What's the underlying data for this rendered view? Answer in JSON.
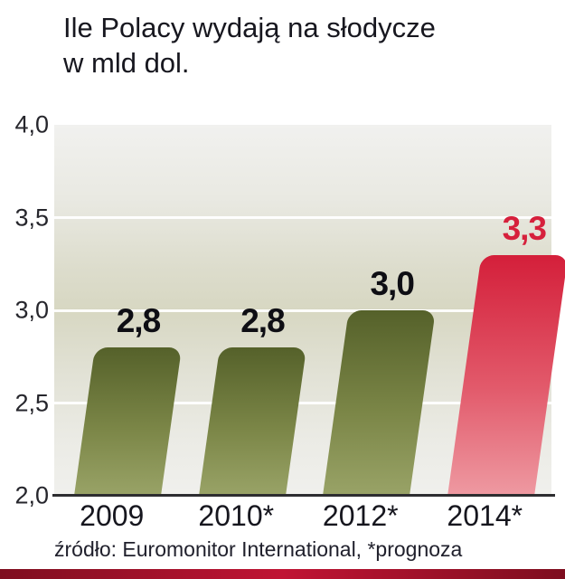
{
  "title": "Ile Polacy wydają  na słodycze\nw mld dol.",
  "source": "źródło: Euromonitor International, *prognoza",
  "colors": {
    "olive_bar": [
      "#55612a",
      "#7b8647",
      "#99a367"
    ],
    "red_bar": [
      "#d41f3a",
      "#e25a6b",
      "#ee9aa2"
    ],
    "value_label_dark": "#0e0e14",
    "value_label_red": "#d6203c",
    "axis_line": "#2d2d30",
    "gridline": "#ffffff",
    "bottom_strip": [
      "#7e0e1f",
      "#c01434",
      "#7e0e1f"
    ]
  },
  "chart_data": {
    "type": "bar",
    "title": "Ile Polacy wydają na słodycze w mld dol.",
    "categories": [
      "2009",
      "2010*",
      "2012*",
      "2014*"
    ],
    "values": [
      2.8,
      2.8,
      3.0,
      3.3
    ],
    "value_labels": [
      "2,8",
      "2,8",
      "3,0",
      "3,3"
    ],
    "series_colors": [
      "olive",
      "olive",
      "olive",
      "red"
    ],
    "ylim": [
      2.0,
      4.0
    ],
    "ytick_values": [
      4.0,
      3.5,
      3.0,
      2.5,
      2.0
    ],
    "ytick_labels": [
      "4,0",
      "3,5",
      "3,0",
      "2,5",
      "2,0"
    ],
    "gridlines": [
      3.5,
      3.0,
      2.5
    ],
    "xlabel": "",
    "ylabel": "",
    "legend": "none",
    "grid": "horizontal-white",
    "source": "źródło: Euromonitor International, *prognoza"
  }
}
